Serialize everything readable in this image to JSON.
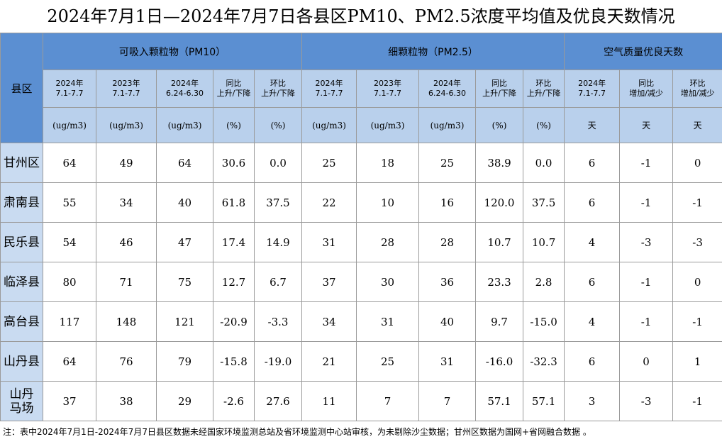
{
  "title": "2024年7月1日—2024年7月7日各县区PM10、PM2.5浓度平均值及优良天数情况",
  "table": {
    "corner": "县区",
    "groups": [
      "可吸入颗粒物（PM10）",
      "细颗粒物（PM2.5）",
      "空气质量优良天数"
    ],
    "subheaders": [
      [
        "2024年",
        "7.1-7.7"
      ],
      [
        "2023年",
        "7.1-7.7"
      ],
      [
        "2024年",
        "6.24-6.30"
      ],
      [
        "同比",
        "上升/下降"
      ],
      [
        "环比",
        "上升/下降"
      ],
      [
        "2024年",
        "7.1-7.7"
      ],
      [
        "2023年",
        "7.1-7.7"
      ],
      [
        "2024年",
        "6.24-6.30"
      ],
      [
        "同比",
        "上升/下降"
      ],
      [
        "环比",
        "上升/下降"
      ],
      [
        "2024年",
        "7.1-7.7"
      ],
      [
        "同比",
        "增加/减少"
      ],
      [
        "环比",
        "增加/减少"
      ]
    ],
    "units": [
      "(ug/m3)",
      "(ug/m3)",
      "(ug/m3)",
      "(%)",
      "(%)",
      "(ug/m3)",
      "(ug/m3)",
      "(ug/m3)",
      "(%)",
      "(%)",
      "天",
      "天",
      "天"
    ],
    "rows": [
      {
        "name": [
          "甘州区"
        ],
        "cells": [
          "64",
          "49",
          "64",
          "30.6",
          "0.0",
          "25",
          "18",
          "25",
          "38.9",
          "0.0",
          "6",
          "-1",
          "0"
        ]
      },
      {
        "name": [
          "肃南县"
        ],
        "cells": [
          "55",
          "34",
          "40",
          "61.8",
          "37.5",
          "22",
          "10",
          "16",
          "120.0",
          "37.5",
          "6",
          "-1",
          "-1"
        ]
      },
      {
        "name": [
          "民乐县"
        ],
        "cells": [
          "54",
          "46",
          "47",
          "17.4",
          "14.9",
          "31",
          "28",
          "28",
          "10.7",
          "10.7",
          "4",
          "-3",
          "-3"
        ]
      },
      {
        "name": [
          "临泽县"
        ],
        "cells": [
          "80",
          "71",
          "75",
          "12.7",
          "6.7",
          "37",
          "30",
          "36",
          "23.3",
          "2.8",
          "6",
          "-1",
          "0"
        ]
      },
      {
        "name": [
          "高台县"
        ],
        "cells": [
          "117",
          "148",
          "121",
          "-20.9",
          "-3.3",
          "34",
          "31",
          "40",
          "9.7",
          "-15.0",
          "4",
          "-1",
          "-1"
        ]
      },
      {
        "name": [
          "山丹县"
        ],
        "cells": [
          "64",
          "76",
          "79",
          "-15.8",
          "-19.0",
          "21",
          "25",
          "31",
          "-16.0",
          "-32.3",
          "6",
          "0",
          "1"
        ]
      },
      {
        "name": [
          "山丹",
          "马场"
        ],
        "cells": [
          "37",
          "38",
          "29",
          "-2.6",
          "27.6",
          "11",
          "7",
          "7",
          "57.1",
          "57.1",
          "3",
          "-3",
          "-1"
        ]
      }
    ]
  },
  "note": "注：表中2024年7月1日-2024年7月7日县区数据未经国家环境监测总站及省环境监测中心站审核，为未剔除沙尘数据；甘州区数据为国网+省网融合数据 。"
}
